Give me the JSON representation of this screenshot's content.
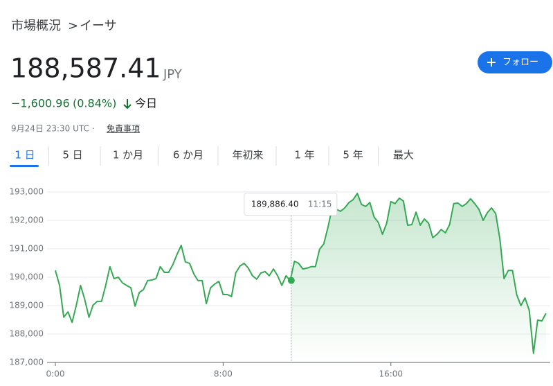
{
  "breadcrumb": {
    "parent": "市場概況",
    "separator": ">",
    "current": "イーサ"
  },
  "quote": {
    "price": "188,587.41",
    "currency": "JPY",
    "change": "−1,600.96",
    "change_percent": "(0.84%)",
    "period": "今日",
    "timestamp": "9月24日 23:30 UTC · ",
    "disclaimer": "免責事項"
  },
  "follow_button": "フォロー",
  "tabs": [
    "1 日",
    "5 日",
    "1 か月",
    "6 か月",
    "年初来",
    "1 年",
    "5 年",
    "最大"
  ],
  "chart_data": {
    "type": "line",
    "color": "#34a853",
    "x": [
      0,
      0.2,
      0.4,
      0.6,
      0.8,
      1,
      1.2,
      1.4,
      1.6,
      1.8,
      2,
      2.2,
      2.4,
      2.6,
      2.8,
      3,
      3.2,
      3.4,
      3.6,
      3.8,
      4,
      4.2,
      4.4,
      4.6,
      4.8,
      5,
      5.2,
      5.4,
      5.6,
      5.8,
      6,
      6.2,
      6.4,
      6.6,
      6.8,
      7,
      7.2,
      7.4,
      7.6,
      7.8,
      8,
      8.2,
      8.4,
      8.6,
      8.8,
      9,
      9.2,
      9.4,
      9.6,
      9.8,
      10,
      10.2,
      10.4,
      10.6,
      10.8,
      11,
      11.2,
      11.4,
      11.6,
      11.8,
      12,
      12.2,
      12.4,
      12.6,
      12.8,
      13,
      13.2,
      13.4,
      13.6,
      13.8,
      14,
      14.2,
      14.4,
      14.6,
      14.8,
      15,
      15.2,
      15.4,
      15.6,
      15.8,
      16,
      16.2,
      16.4,
      16.6,
      16.8,
      17,
      17.2,
      17.4,
      17.6,
      17.8,
      18,
      18.2,
      18.4,
      18.6,
      18.8,
      19,
      19.2,
      19.4,
      19.6,
      19.8,
      20,
      20.2,
      20.4,
      20.6,
      20.8,
      21,
      21.2,
      21.4,
      21.6,
      21.8,
      22,
      22.2,
      22.4,
      22.6,
      22.8,
      23,
      23.2,
      23.4
    ],
    "values": [
      190240,
      189710,
      188590,
      188780,
      188410,
      189020,
      189710,
      189220,
      188590,
      189020,
      189150,
      189150,
      189710,
      190370,
      189950,
      190000,
      189800,
      189710,
      189630,
      188980,
      189460,
      189560,
      189880,
      189900,
      189950,
      190370,
      190170,
      190170,
      190440,
      190800,
      191120,
      190540,
      190490,
      190120,
      189880,
      189880,
      189070,
      189630,
      189760,
      189850,
      189390,
      189390,
      189320,
      190150,
      190390,
      190490,
      190320,
      190050,
      189930,
      190150,
      190200,
      190050,
      190290,
      190050,
      189710,
      190050,
      189880,
      190560,
      190490,
      190290,
      190320,
      190370,
      190370,
      190980,
      191170,
      191760,
      192440,
      192390,
      192320,
      192440,
      192630,
      192730,
      192950,
      192560,
      192490,
      192630,
      192120,
      191930,
      191510,
      191900,
      192660,
      192590,
      192780,
      192680,
      191830,
      191850,
      192290,
      191830,
      192050,
      191900,
      191390,
      191510,
      191680,
      191560,
      191850,
      192590,
      192610,
      192490,
      192590,
      192760,
      192590,
      192390,
      192000,
      192270,
      192440,
      192240,
      191340,
      189950,
      190240,
      190240,
      189390,
      189000,
      189270,
      188830,
      187320,
      188490,
      188460,
      188730
    ],
    "xlim": [
      0,
      23.6
    ],
    "xticks": [
      {
        "value": 0,
        "label": "0:00"
      },
      {
        "value": 8,
        "label": "8:00"
      },
      {
        "value": 16,
        "label": "16:00"
      }
    ],
    "ylim": [
      187000,
      193200
    ],
    "yticks": [
      {
        "value": 187000,
        "label": "187,000"
      },
      {
        "value": 188000,
        "label": "188,000"
      },
      {
        "value": 189000,
        "label": "189,000"
      },
      {
        "value": 190000,
        "label": "190,000"
      },
      {
        "value": 191000,
        "label": "191,000"
      },
      {
        "value": 192000,
        "label": "192,000"
      },
      {
        "value": 193000,
        "label": "193,000"
      }
    ],
    "grid": true,
    "tooltip": {
      "x": 11.25,
      "y": 189886.4,
      "label": "189,886.40",
      "time": "11:15"
    }
  }
}
